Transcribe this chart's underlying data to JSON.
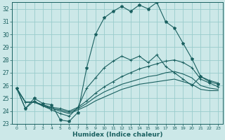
{
  "xlabel": "Humidex (Indice chaleur)",
  "xlim": [
    -0.5,
    23.5
  ],
  "ylim": [
    23,
    32.5
  ],
  "yticks": [
    23,
    24,
    25,
    26,
    27,
    28,
    29,
    30,
    31,
    32
  ],
  "xticks": [
    0,
    1,
    2,
    3,
    4,
    5,
    6,
    7,
    8,
    9,
    10,
    11,
    12,
    13,
    14,
    15,
    16,
    17,
    18,
    19,
    20,
    21,
    22,
    23
  ],
  "bg_color": "#cce8e8",
  "grid_color": "#99cccc",
  "line_color": "#1a6060",
  "line1_marker": "*",
  "line1": [
    25.8,
    24.2,
    25.0,
    24.6,
    24.5,
    23.3,
    23.2,
    23.9,
    27.4,
    30.0,
    31.3,
    31.8,
    32.2,
    31.8,
    32.3,
    32.0,
    32.5,
    31.0,
    30.5,
    29.3,
    28.1,
    26.7,
    26.3,
    26.1
  ],
  "line2_marker": "+",
  "line2": [
    25.8,
    24.2,
    24.8,
    24.4,
    24.1,
    23.8,
    23.6,
    24.3,
    25.8,
    26.6,
    27.4,
    27.9,
    28.3,
    28.0,
    28.3,
    27.8,
    28.4,
    27.5,
    27.0,
    26.5,
    26.0,
    26.7,
    26.4,
    26.2
  ],
  "line3": [
    25.8,
    24.7,
    24.7,
    24.5,
    24.3,
    24.2,
    24.0,
    24.3,
    24.8,
    25.4,
    25.9,
    26.3,
    26.7,
    27.0,
    27.3,
    27.5,
    27.7,
    27.9,
    28.0,
    27.8,
    27.4,
    26.5,
    26.2,
    25.9
  ],
  "line4": [
    25.8,
    24.7,
    24.7,
    24.5,
    24.2,
    24.1,
    23.9,
    24.2,
    24.6,
    25.1,
    25.5,
    25.8,
    26.1,
    26.3,
    26.5,
    26.7,
    26.8,
    27.0,
    27.1,
    26.9,
    26.6,
    26.0,
    25.8,
    25.7
  ],
  "line5": [
    25.8,
    24.7,
    24.7,
    24.4,
    24.2,
    24.0,
    23.8,
    24.1,
    24.4,
    24.8,
    25.1,
    25.4,
    25.7,
    25.9,
    26.1,
    26.2,
    26.3,
    26.4,
    26.5,
    26.3,
    26.1,
    25.7,
    25.6,
    25.6
  ]
}
